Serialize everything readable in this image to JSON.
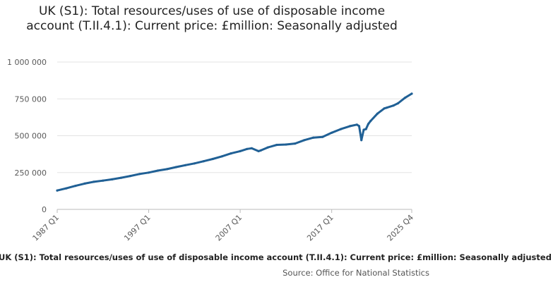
{
  "chart_data": {
    "type": "line",
    "title": "UK (S1): Total resources/uses of use of disposable income account (T.II.4.1): Current price: £million: Seasonally adjusted",
    "caption": "UK (S1): Total resources/uses of use of disposable income account (T.II.4.1): Current price: £million: Seasonally adjusted",
    "source": "Source: Office for National Statistics",
    "x_ticks": [
      "1987 Q1",
      "1997 Q1",
      "2007 Q1",
      "2017 Q1",
      "2025 Q4"
    ],
    "y_ticks": [
      "0",
      "250 000",
      "500 000",
      "750 000",
      "1 000 000"
    ],
    "y_tick_values": [
      0,
      250000,
      500000,
      750000,
      1000000
    ],
    "ylim": [
      0,
      1000000
    ],
    "x_start": "1987 Q1",
    "x_end": "2025 Q4",
    "grid": true,
    "colors": {
      "line": "#206095",
      "grid": "#e3e3e3",
      "axis": "#bbbbbb"
    },
    "series": [
      {
        "quarters": [
          "1987 Q1",
          "1988 Q1",
          "1989 Q1",
          "1990 Q1",
          "1991 Q1",
          "1992 Q1",
          "1993 Q1",
          "1994 Q1",
          "1995 Q1",
          "1996 Q1",
          "1997 Q1",
          "1998 Q1",
          "1999 Q1",
          "2000 Q1",
          "2001 Q1",
          "2002 Q1",
          "2003 Q1",
          "2004 Q1",
          "2005 Q1",
          "2006 Q1",
          "2007 Q1",
          "2007 Q4",
          "2008 Q2",
          "2009 Q1",
          "2009 Q2",
          "2010 Q1",
          "2011 Q1",
          "2012 Q1",
          "2013 Q1",
          "2014 Q1",
          "2015 Q1",
          "2016 Q1",
          "2017 Q1",
          "2018 Q1",
          "2019 Q1",
          "2019 Q4",
          "2020 Q1",
          "2020 Q2",
          "2020 Q3",
          "2020 Q4",
          "2021 Q1",
          "2021 Q2",
          "2022 Q1",
          "2022 Q4",
          "2023 Q1",
          "2023 Q4",
          "2024 Q2",
          "2025 Q1",
          "2025 Q4"
        ],
        "values": [
          128000,
          143000,
          160000,
          175000,
          187000,
          195000,
          204000,
          215000,
          227000,
          240000,
          250000,
          263000,
          273000,
          287000,
          300000,
          312000,
          327000,
          342000,
          360000,
          380000,
          395000,
          410000,
          415000,
          395000,
          400000,
          420000,
          438000,
          440000,
          447000,
          470000,
          487000,
          492000,
          520000,
          545000,
          565000,
          575000,
          565000,
          470000,
          540000,
          545000,
          580000,
          600000,
          650000,
          685000,
          690000,
          705000,
          720000,
          757000,
          785000
        ]
      }
    ]
  }
}
